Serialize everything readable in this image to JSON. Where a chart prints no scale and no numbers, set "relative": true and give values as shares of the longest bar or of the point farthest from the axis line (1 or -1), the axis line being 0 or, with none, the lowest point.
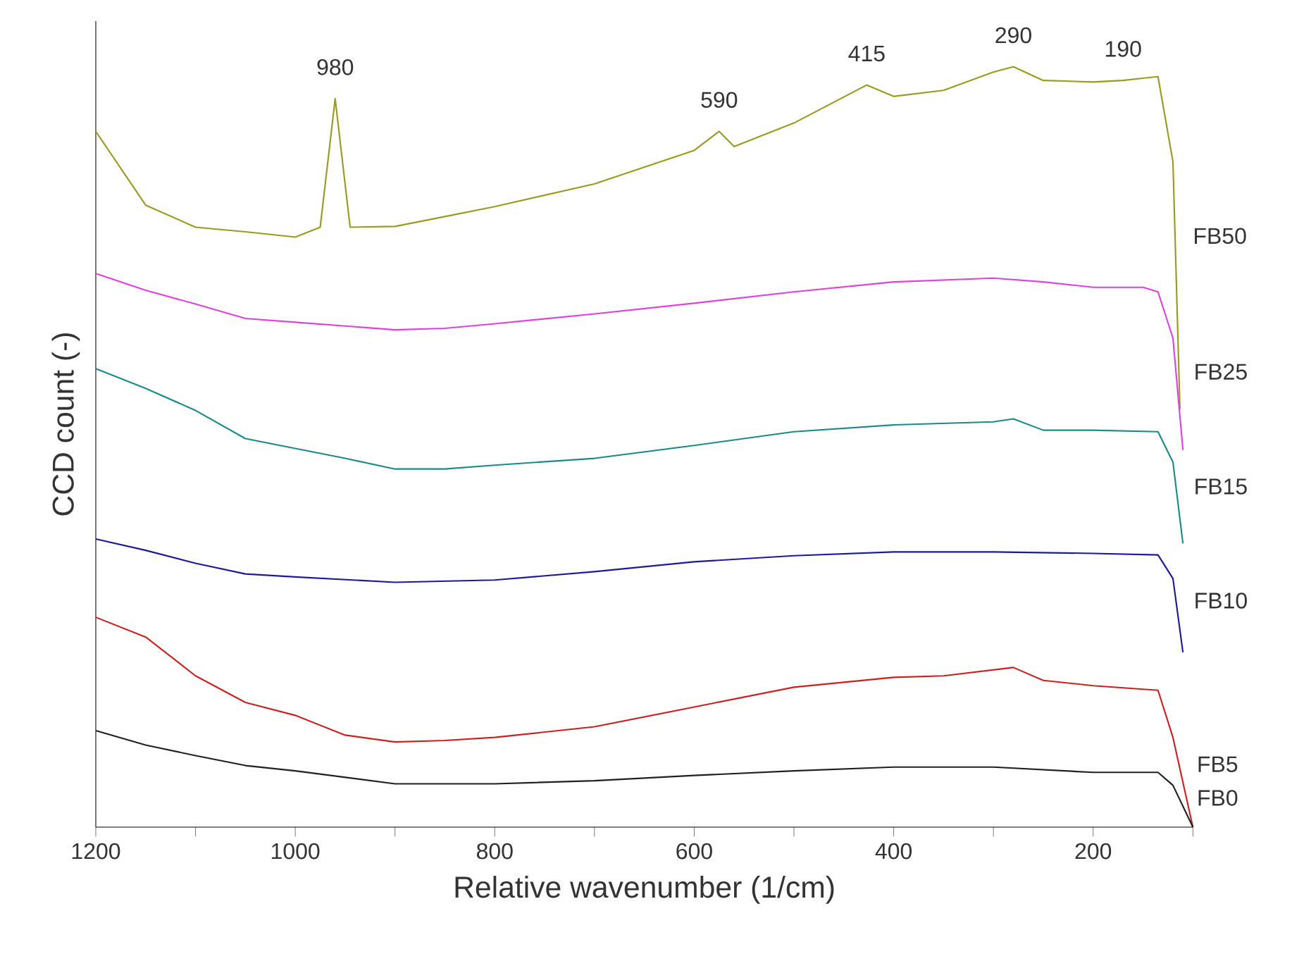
{
  "chart_data": {
    "type": "line",
    "relative": true,
    "xlabel": "Relative wavenumber (1/cm)",
    "ylabel": "CCD count (-)",
    "xlim": [
      1200,
      100
    ],
    "xticks": [
      1200,
      {
        "value": 1100,
        "label": null
      },
      1000,
      {
        "value": 900,
        "label": null
      },
      800,
      {
        "value": 700,
        "label": null
      },
      600,
      {
        "value": 500,
        "label": null
      },
      400,
      {
        "value": 300,
        "label": null
      },
      200,
      {
        "value": 100,
        "label": null
      }
    ],
    "series": [
      {
        "name": "FB50",
        "color": "#9a9a1e",
        "x": [
          1200,
          1150,
          1100,
          1050,
          1000,
          975,
          960,
          945,
          900,
          850,
          800,
          700,
          600,
          575,
          560,
          500,
          427,
          400,
          350,
          300,
          280,
          250,
          200,
          170,
          150,
          135,
          120,
          113
        ],
        "values": [
          0.915,
          0.818,
          0.789,
          0.783,
          0.776,
          0.789,
          0.958,
          0.789,
          0.79,
          0.803,
          0.816,
          0.846,
          0.89,
          0.915,
          0.895,
          0.926,
          0.976,
          0.961,
          0.969,
          0.993,
          1,
          0.982,
          0.98,
          0.982,
          0.985,
          0.987,
          0.875,
          0.55
        ]
      },
      {
        "name": "FB25",
        "color": "#e040e0",
        "x": [
          1200,
          1150,
          1100,
          1050,
          1000,
          900,
          850,
          800,
          700,
          600,
          500,
          400,
          300,
          250,
          200,
          150,
          135,
          120,
          110
        ],
        "values": [
          0.728,
          0.706,
          0.688,
          0.669,
          0.664,
          0.654,
          0.656,
          0.662,
          0.675,
          0.689,
          0.704,
          0.717,
          0.722,
          0.717,
          0.71,
          0.71,
          0.704,
          0.643,
          0.496
        ]
      },
      {
        "name": "FB15",
        "color": "#1a8a8a",
        "x": [
          1200,
          1150,
          1100,
          1050,
          1000,
          950,
          900,
          850,
          800,
          700,
          600,
          500,
          400,
          300,
          280,
          250,
          200,
          135,
          120,
          110
        ],
        "values": [
          0.603,
          0.577,
          0.548,
          0.511,
          0.498,
          0.485,
          0.471,
          0.471,
          0.476,
          0.485,
          0.502,
          0.52,
          0.529,
          0.533,
          0.537,
          0.522,
          0.522,
          0.52,
          0.48,
          0.373
        ]
      },
      {
        "name": "FB10",
        "color": "#1a1a9a",
        "x": [
          1200,
          1150,
          1100,
          1050,
          1000,
          900,
          800,
          700,
          600,
          500,
          400,
          300,
          200,
          135,
          120,
          110
        ],
        "values": [
          0.379,
          0.364,
          0.347,
          0.333,
          0.329,
          0.322,
          0.325,
          0.336,
          0.349,
          0.357,
          0.362,
          0.362,
          0.36,
          0.358,
          0.327,
          0.23
        ]
      },
      {
        "name": "FB5",
        "color": "#cc2020",
        "x": [
          1200,
          1150,
          1100,
          1050,
          1000,
          950,
          900,
          850,
          800,
          700,
          600,
          500,
          400,
          350,
          280,
          250,
          200,
          135,
          120,
          100
        ],
        "values": [
          0.276,
          0.25,
          0.199,
          0.164,
          0.147,
          0.121,
          0.112,
          0.114,
          0.118,
          0.132,
          0.158,
          0.184,
          0.197,
          0.199,
          0.21,
          0.193,
          0.186,
          0.18,
          0.118,
          0
        ]
      },
      {
        "name": "FB0",
        "color": "#202020",
        "x": [
          1200,
          1150,
          1100,
          1050,
          1000,
          900,
          800,
          700,
          600,
          500,
          400,
          300,
          200,
          135,
          120,
          100
        ],
        "values": [
          0.127,
          0.108,
          0.094,
          0.081,
          0.074,
          0.057,
          0.057,
          0.061,
          0.068,
          0.074,
          0.079,
          0.079,
          0.072,
          0.072,
          0.055,
          0
        ]
      }
    ],
    "annotations": [
      {
        "text": "980",
        "x": 960,
        "y": 0.958
      },
      {
        "text": "590",
        "x": 575,
        "y": 0.915
      },
      {
        "text": "415",
        "x": 427,
        "y": 0.976
      },
      {
        "text": "290",
        "x": 280,
        "y": 1
      },
      {
        "text": "190",
        "x": 170,
        "y": 0.982
      }
    ]
  }
}
